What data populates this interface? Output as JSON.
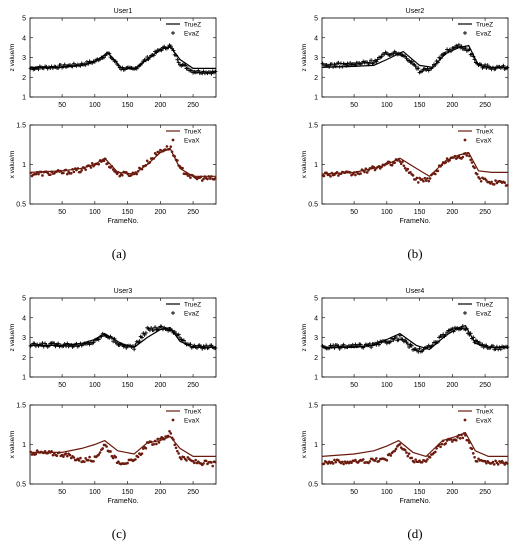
{
  "panel_labels": [
    "(a)",
    "(b)",
    "(c)",
    "(d)"
  ],
  "style": {
    "z_color": "#000000",
    "x_color": "#6b1a0e",
    "axis_color": "#000000"
  },
  "chart_data": [
    {
      "type": "line",
      "title": "User1",
      "xlabel": "",
      "ylabel": "z value/m",
      "xlim": [
        1,
        285
      ],
      "ylim": [
        1,
        5
      ],
      "xticks": [
        50,
        100,
        150,
        200,
        250
      ],
      "yticks": [
        1,
        2,
        3,
        4,
        5
      ],
      "legend": "top-right",
      "series": [
        {
          "name": "TrueZ",
          "style": "line",
          "x": [
            1,
            50,
            80,
            100,
            120,
            140,
            160,
            180,
            200,
            215,
            230,
            250,
            285
          ],
          "y": [
            2.5,
            2.5,
            2.6,
            2.8,
            3.25,
            2.5,
            2.4,
            2.9,
            3.4,
            3.55,
            2.9,
            2.45,
            2.45
          ]
        },
        {
          "name": "EvaZ",
          "style": "marker",
          "x": [
            1,
            50,
            80,
            100,
            120,
            140,
            160,
            180,
            200,
            215,
            230,
            250,
            285
          ],
          "y": [
            2.45,
            2.55,
            2.65,
            2.8,
            3.2,
            2.45,
            2.4,
            2.95,
            3.4,
            3.6,
            2.7,
            2.3,
            2.25
          ],
          "noise": 0.08
        }
      ]
    },
    {
      "type": "line",
      "title": "",
      "xlabel": "FrameNo.",
      "ylabel": "x value/m",
      "xlim": [
        1,
        285
      ],
      "ylim": [
        0.5,
        1.5
      ],
      "xticks": [
        50,
        100,
        150,
        200,
        250
      ],
      "yticks": [
        0.5,
        1,
        1.5
      ],
      "legend": "top-right",
      "series": [
        {
          "name": "TrueX",
          "style": "line",
          "x": [
            1,
            50,
            80,
            100,
            115,
            135,
            160,
            180,
            200,
            215,
            230,
            250,
            285
          ],
          "y": [
            0.9,
            0.92,
            0.95,
            1.0,
            1.08,
            0.9,
            0.88,
            1.0,
            1.15,
            1.2,
            0.95,
            0.85,
            0.85
          ]
        },
        {
          "name": "EvaX",
          "style": "marker",
          "x": [
            1,
            50,
            80,
            100,
            115,
            135,
            160,
            180,
            200,
            215,
            230,
            250,
            285
          ],
          "y": [
            0.88,
            0.9,
            0.93,
            1.0,
            1.06,
            0.88,
            0.88,
            1.02,
            1.18,
            1.22,
            0.95,
            0.83,
            0.82
          ],
          "noise": 0.03
        }
      ]
    },
    {
      "type": "line",
      "title": "User2",
      "xlabel": "",
      "ylabel": "z value/m",
      "xlim": [
        1,
        285
      ],
      "ylim": [
        1,
        5
      ],
      "xticks": [
        50,
        100,
        150,
        200,
        250
      ],
      "yticks": [
        1,
        2,
        3,
        4,
        5
      ],
      "legend": "top-right",
      "series": [
        {
          "name": "TrueZ",
          "style": "line",
          "x": [
            1,
            50,
            80,
            100,
            125,
            150,
            170,
            190,
            210,
            225,
            240,
            260,
            285
          ],
          "y": [
            2.5,
            2.55,
            2.6,
            2.9,
            3.3,
            2.6,
            2.5,
            3.2,
            3.5,
            3.6,
            2.6,
            2.5,
            2.5
          ]
        },
        {
          "name": "EvaZ",
          "style": "marker",
          "x": [
            1,
            50,
            80,
            100,
            125,
            150,
            170,
            190,
            210,
            225,
            240,
            260,
            285
          ],
          "y": [
            2.6,
            2.65,
            2.8,
            3.2,
            3.2,
            2.3,
            2.5,
            3.3,
            3.6,
            3.4,
            2.6,
            2.5,
            2.5
          ],
          "noise": 0.1
        }
      ]
    },
    {
      "type": "line",
      "title": "",
      "xlabel": "FrameNo.",
      "ylabel": "x value/m",
      "xlim": [
        1,
        285
      ],
      "ylim": [
        0.5,
        1.5
      ],
      "xticks": [
        50,
        100,
        150,
        200,
        250
      ],
      "yticks": [
        0.5,
        1,
        1.5
      ],
      "legend": "top-right",
      "series": [
        {
          "name": "TrueX",
          "style": "line",
          "x": [
            1,
            50,
            80,
            100,
            120,
            145,
            165,
            190,
            210,
            225,
            240,
            260,
            285
          ],
          "y": [
            0.88,
            0.9,
            0.95,
            1.0,
            1.08,
            0.95,
            0.85,
            1.05,
            1.12,
            1.15,
            0.92,
            0.9,
            0.9
          ]
        },
        {
          "name": "EvaX",
          "style": "marker",
          "x": [
            1,
            50,
            80,
            100,
            120,
            145,
            165,
            190,
            210,
            225,
            240,
            260,
            285
          ],
          "y": [
            0.88,
            0.88,
            0.95,
            1.0,
            1.05,
            0.8,
            0.82,
            1.05,
            1.1,
            1.12,
            0.82,
            0.78,
            0.75
          ],
          "noise": 0.03
        }
      ]
    },
    {
      "type": "line",
      "title": "User3",
      "xlabel": "",
      "ylabel": "z value/m",
      "xlim": [
        1,
        285
      ],
      "ylim": [
        1,
        5
      ],
      "xticks": [
        50,
        100,
        150,
        200,
        250
      ],
      "yticks": [
        1,
        2,
        3,
        4,
        5
      ],
      "legend": "top-right",
      "series": [
        {
          "name": "TrueZ",
          "style": "line",
          "x": [
            1,
            50,
            80,
            100,
            115,
            140,
            160,
            180,
            200,
            215,
            230,
            250,
            285
          ],
          "y": [
            2.6,
            2.6,
            2.7,
            2.9,
            3.2,
            2.7,
            2.5,
            3.0,
            3.4,
            3.5,
            2.8,
            2.5,
            2.5
          ]
        },
        {
          "name": "EvaZ",
          "style": "marker",
          "x": [
            1,
            50,
            80,
            100,
            115,
            140,
            160,
            180,
            200,
            215,
            230,
            250,
            285
          ],
          "y": [
            2.6,
            2.65,
            2.6,
            2.8,
            3.2,
            2.6,
            2.5,
            3.4,
            3.5,
            3.4,
            3.0,
            2.5,
            2.55
          ],
          "noise": 0.1
        }
      ]
    },
    {
      "type": "line",
      "title": "",
      "xlabel": "FrameNo.",
      "ylabel": "x value/m",
      "xlim": [
        1,
        285
      ],
      "ylim": [
        0.5,
        1.5
      ],
      "xticks": [
        50,
        100,
        150,
        200,
        250
      ],
      "yticks": [
        0.5,
        1,
        1.5
      ],
      "legend": "top-right",
      "series": [
        {
          "name": "TrueX",
          "style": "line",
          "x": [
            1,
            50,
            80,
            100,
            115,
            135,
            160,
            180,
            200,
            215,
            230,
            250,
            285
          ],
          "y": [
            0.9,
            0.9,
            0.95,
            1.0,
            1.05,
            0.92,
            0.88,
            1.02,
            1.05,
            1.1,
            0.95,
            0.85,
            0.85
          ]
        },
        {
          "name": "EvaX",
          "style": "marker",
          "x": [
            1,
            50,
            80,
            100,
            115,
            135,
            160,
            180,
            200,
            215,
            230,
            250,
            285
          ],
          "y": [
            0.9,
            0.88,
            0.8,
            0.82,
            1.0,
            0.78,
            0.78,
            1.0,
            1.05,
            1.15,
            0.85,
            0.78,
            0.75
          ],
          "noise": 0.03
        }
      ]
    },
    {
      "type": "line",
      "title": "User4",
      "xlabel": "",
      "ylabel": "z value/m",
      "xlim": [
        1,
        285
      ],
      "ylim": [
        1,
        5
      ],
      "xticks": [
        50,
        100,
        150,
        200,
        250
      ],
      "yticks": [
        1,
        2,
        3,
        4,
        5
      ],
      "legend": "top-right",
      "series": [
        {
          "name": "TrueZ",
          "style": "line",
          "x": [
            1,
            50,
            80,
            100,
            120,
            145,
            165,
            190,
            210,
            220,
            235,
            255,
            285
          ],
          "y": [
            2.5,
            2.5,
            2.6,
            2.9,
            3.2,
            2.6,
            2.4,
            3.1,
            3.5,
            3.6,
            2.7,
            2.5,
            2.5
          ]
        },
        {
          "name": "EvaZ",
          "style": "marker",
          "x": [
            1,
            50,
            80,
            100,
            120,
            145,
            165,
            190,
            210,
            220,
            235,
            255,
            285
          ],
          "y": [
            2.5,
            2.55,
            2.6,
            2.8,
            3.0,
            2.3,
            2.5,
            3.2,
            3.5,
            3.5,
            2.8,
            2.5,
            2.45
          ],
          "noise": 0.1
        }
      ]
    },
    {
      "type": "line",
      "title": "",
      "xlabel": "FrameNo.",
      "ylabel": "x value/m",
      "xlim": [
        1,
        285
      ],
      "ylim": [
        0.5,
        1.5
      ],
      "xticks": [
        50,
        100,
        150,
        200,
        250
      ],
      "yticks": [
        0.5,
        1,
        1.5
      ],
      "legend": "top-right",
      "series": [
        {
          "name": "TrueX",
          "style": "line",
          "x": [
            1,
            50,
            80,
            100,
            118,
            140,
            160,
            185,
            205,
            220,
            235,
            255,
            285
          ],
          "y": [
            0.85,
            0.88,
            0.92,
            0.98,
            1.05,
            0.9,
            0.85,
            1.05,
            1.1,
            1.15,
            0.92,
            0.85,
            0.85
          ]
        },
        {
          "name": "EvaX",
          "style": "marker",
          "x": [
            1,
            50,
            80,
            100,
            118,
            140,
            160,
            185,
            205,
            220,
            235,
            255,
            285
          ],
          "y": [
            0.78,
            0.78,
            0.8,
            0.82,
            1.0,
            0.8,
            0.78,
            1.02,
            1.08,
            1.12,
            0.82,
            0.78,
            0.75
          ],
          "noise": 0.03
        }
      ]
    }
  ]
}
